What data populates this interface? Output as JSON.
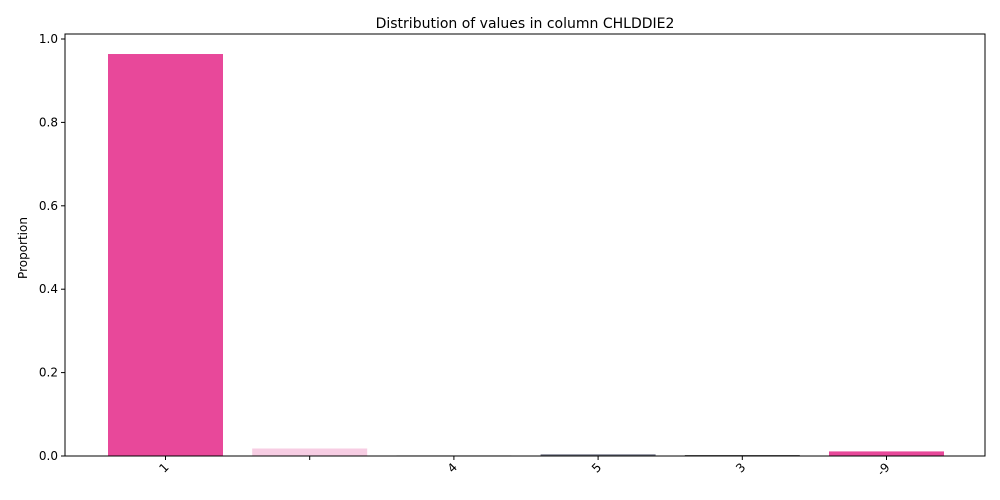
{
  "chart_data": {
    "type": "bar",
    "title": "Distribution of values in column CHLDDIE2",
    "xlabel": "",
    "ylabel": "Proportion",
    "ylim": [
      0,
      1.0
    ],
    "yticks": [
      "0.0",
      "0.2",
      "0.4",
      "0.6",
      "0.8",
      "1.0"
    ],
    "categories": [
      "1",
      "",
      "4",
      "5",
      "3",
      "-9"
    ],
    "values": [
      0.964,
      0.018,
      0.001,
      0.004,
      0.002,
      0.011
    ],
    "colors": [
      "#e8489a",
      "#f7cde3",
      "#bbbbbb",
      "#6a6f80",
      "#222222",
      "#e8489a"
    ],
    "grid": false
  }
}
